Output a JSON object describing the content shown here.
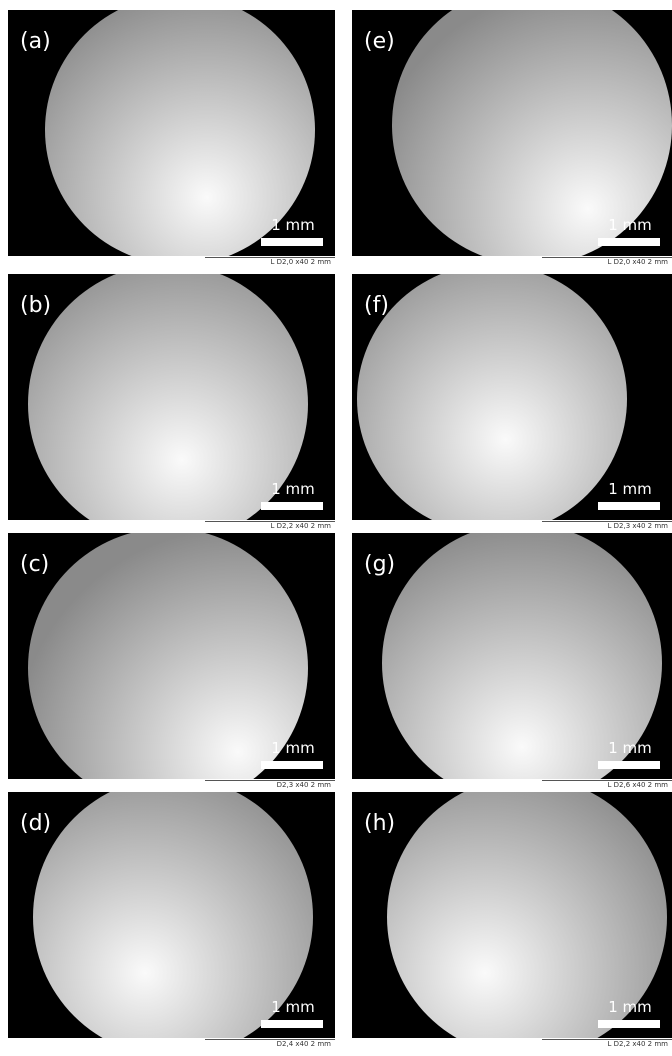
{
  "panels": [
    {
      "label": "(a)",
      "scale": "1 mm",
      "footer": "L D2,0 x40 2 mm"
    },
    {
      "label": "(e)",
      "scale": "1 mm",
      "footer": "L D2,0 x40 2 mm"
    },
    {
      "label": "(b)",
      "scale": "1 mm",
      "footer": "L D2,2 x40 2 mm"
    },
    {
      "label": "(f)",
      "scale": "1 mm",
      "footer": "L D2,3 x40 2 mm"
    },
    {
      "label": "(c)",
      "scale": "1 mm",
      "footer": "D2,3 x40 2 mm"
    },
    {
      "label": "(g)",
      "scale": "1 mm",
      "footer": "L D2,6 x40 2 mm"
    },
    {
      "label": "(d)",
      "scale": "1 mm",
      "footer": "D2,4 x40 2 mm"
    },
    {
      "label": "(h)",
      "scale": "1 mm",
      "footer": "L D2,2 x40 2 mm"
    }
  ]
}
